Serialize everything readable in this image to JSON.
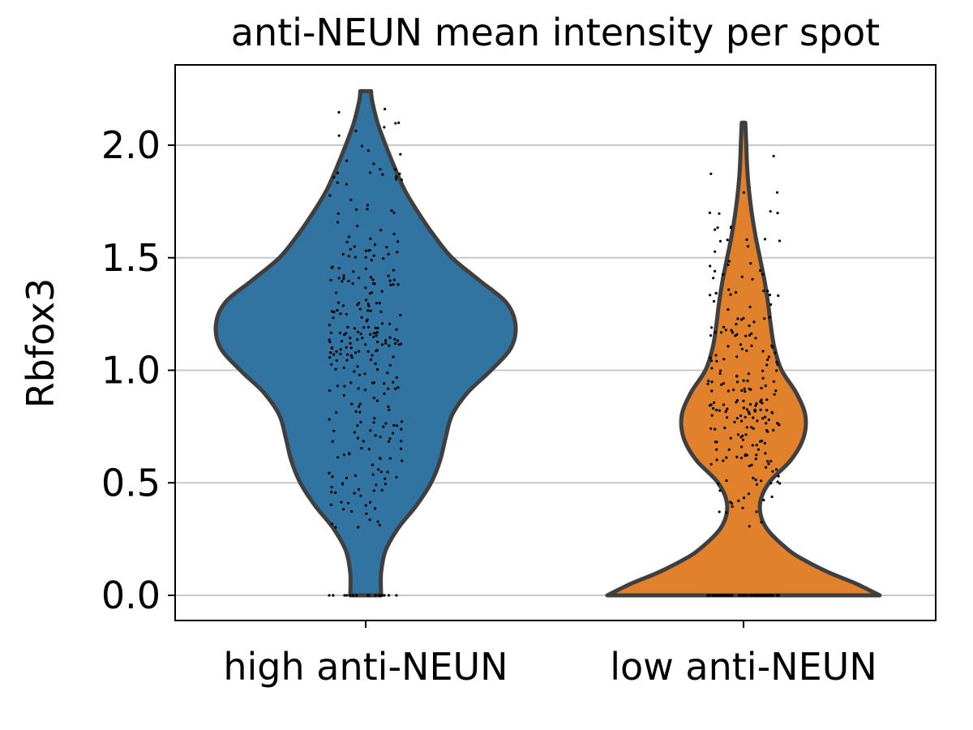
{
  "chart_data": {
    "type": "violin",
    "title": "anti-NEUN mean intensity per spot",
    "xlabel": "",
    "ylabel": "Rbfox3",
    "ylim": [
      -0.11,
      2.35
    ],
    "yticks": [
      "0.0",
      "0.5",
      "1.0",
      "1.5",
      "2.0"
    ],
    "ytick_values": [
      0.0,
      0.5,
      1.0,
      1.5,
      2.0
    ],
    "grid": "horizontal",
    "categories": [
      "high anti-NEUN",
      "low anti-NEUN"
    ],
    "series": [
      {
        "color": "#3274a1",
        "max": 2.24,
        "zero_spots_fraction": 0.06,
        "profile": [
          [
            0.0,
            0.17
          ],
          [
            0.1,
            0.17
          ],
          [
            0.2,
            0.22
          ],
          [
            0.3,
            0.36
          ],
          [
            0.4,
            0.56
          ],
          [
            0.5,
            0.72
          ],
          [
            0.6,
            0.82
          ],
          [
            0.7,
            0.88
          ],
          [
            0.8,
            0.95
          ],
          [
            0.9,
            1.12
          ],
          [
            1.0,
            1.38
          ],
          [
            1.1,
            1.6
          ],
          [
            1.2,
            1.65
          ],
          [
            1.3,
            1.55
          ],
          [
            1.4,
            1.25
          ],
          [
            1.5,
            0.95
          ],
          [
            1.6,
            0.75
          ],
          [
            1.7,
            0.58
          ],
          [
            1.8,
            0.43
          ],
          [
            1.9,
            0.32
          ],
          [
            2.0,
            0.22
          ],
          [
            2.1,
            0.13
          ],
          [
            2.2,
            0.07
          ],
          [
            2.24,
            0.06
          ]
        ]
      },
      {
        "color": "#e1812c",
        "max": 2.1,
        "zero_spots_fraction": 0.22,
        "profile": [
          [
            0.0,
            1.5
          ],
          [
            0.05,
            1.25
          ],
          [
            0.1,
            0.95
          ],
          [
            0.15,
            0.7
          ],
          [
            0.2,
            0.5
          ],
          [
            0.3,
            0.25
          ],
          [
            0.4,
            0.18
          ],
          [
            0.5,
            0.28
          ],
          [
            0.6,
            0.52
          ],
          [
            0.7,
            0.66
          ],
          [
            0.8,
            0.68
          ],
          [
            0.9,
            0.58
          ],
          [
            1.0,
            0.42
          ],
          [
            1.1,
            0.34
          ],
          [
            1.2,
            0.3
          ],
          [
            1.3,
            0.27
          ],
          [
            1.4,
            0.23
          ],
          [
            1.5,
            0.18
          ],
          [
            1.6,
            0.13
          ],
          [
            1.7,
            0.09
          ],
          [
            1.8,
            0.06
          ],
          [
            1.9,
            0.04
          ],
          [
            2.0,
            0.03
          ],
          [
            2.1,
            0.02
          ]
        ]
      }
    ]
  }
}
